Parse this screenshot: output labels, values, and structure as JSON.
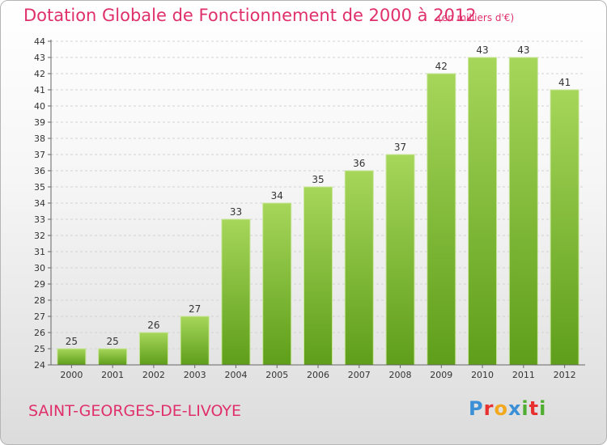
{
  "header": {
    "title": "Dotation Globale de Fonctionnement de 2000 à 2012",
    "subtitle": "(en milliers d'€)"
  },
  "footer": {
    "commune": "SAINT-GEORGES-DE-LIVOYE",
    "logo_text": "Proxiti",
    "logo_colors": [
      "#3a8fd6",
      "#e8312f",
      "#f2a81d",
      "#3a8fd6",
      "#4fae32",
      "#e8312f",
      "#4fae32"
    ]
  },
  "colors": {
    "bar_top": "#a6d65a",
    "bar_bottom": "#5e9e1a",
    "grid": "#d2d2d2",
    "axis": "#666666",
    "title": "#e0306b"
  },
  "chart_data": {
    "type": "bar",
    "title": "Dotation Globale de Fonctionnement de 2000 à 2012",
    "subtitle": "(en milliers d'€)",
    "xlabel": "",
    "ylabel": "",
    "categories": [
      "2000",
      "2001",
      "2002",
      "2003",
      "2004",
      "2005",
      "2006",
      "2007",
      "2008",
      "2009",
      "2010",
      "2011",
      "2012"
    ],
    "values": [
      25,
      25,
      26,
      27,
      33,
      34,
      35,
      36,
      37,
      42,
      43,
      43,
      41
    ],
    "ylim": [
      24,
      44
    ],
    "yticks": [
      24,
      25,
      26,
      27,
      28,
      29,
      30,
      31,
      32,
      33,
      34,
      35,
      36,
      37,
      38,
      39,
      40,
      41,
      42,
      43,
      44
    ],
    "grid": true,
    "data_labels": true
  }
}
